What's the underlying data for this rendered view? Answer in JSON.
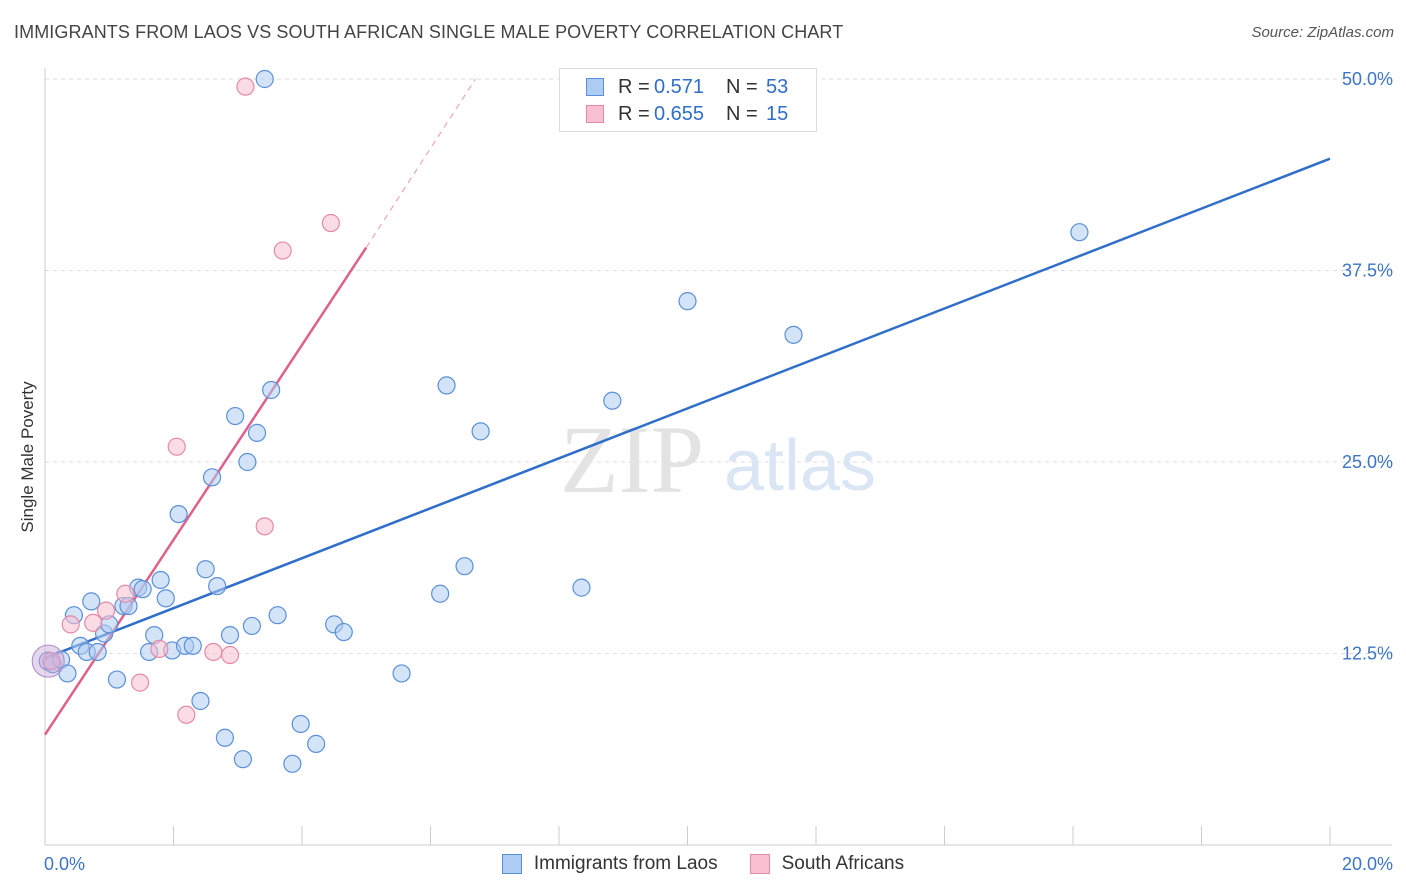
{
  "header": {
    "title": "IMMIGRANTS FROM LAOS VS SOUTH AFRICAN SINGLE MALE POVERTY CORRELATION CHART",
    "source": "Source: ZipAtlas.com"
  },
  "watermark": {
    "zip": "ZIP",
    "atlas": "atlas"
  },
  "legend": {
    "rows": [
      {
        "r_label": "R =",
        "r_value": "0.571",
        "n_label": "N =",
        "n_value": "53"
      },
      {
        "r_label": "R =",
        "r_value": "0.655",
        "n_label": "N =",
        "n_value": "15"
      }
    ]
  },
  "colors": {
    "blue_fill": "#aeccf3",
    "blue_stroke": "#5b90d8",
    "blue_line": "#2f6fc9",
    "pink_fill": "#f7bfd0",
    "pink_stroke": "#e48aa8",
    "pink_line": "#e0608c",
    "axis_text": "#3d74c6",
    "grid": "#dddddd"
  },
  "chart_data": {
    "type": "scatter",
    "title": "IMMIGRANTS FROM LAOS VS SOUTH AFRICAN SINGLE MALE POVERTY CORRELATION CHART",
    "xlabel": "",
    "ylabel": "Single Male Poverty",
    "xlim": [
      0,
      20
    ],
    "ylim": [
      0,
      50
    ],
    "x_tick_labels": [
      "0.0%",
      "20.0%"
    ],
    "y_ticks": [
      {
        "value": 12.5,
        "label": "12.5%"
      },
      {
        "value": 25.0,
        "label": "25.0%"
      },
      {
        "value": 37.5,
        "label": "37.5%"
      },
      {
        "value": 50.0,
        "label": "50.0%"
      }
    ],
    "grid": true,
    "legend_position": "top-center",
    "series": [
      {
        "name": "Immigrants from Laos",
        "R": 0.571,
        "N": 53,
        "points": [
          [
            0.05,
            12.0
          ],
          [
            0.12,
            11.8
          ],
          [
            0.25,
            12.1
          ],
          [
            0.35,
            11.2
          ],
          [
            0.45,
            15.0
          ],
          [
            0.55,
            13.0
          ],
          [
            0.65,
            12.6
          ],
          [
            0.72,
            15.9
          ],
          [
            0.82,
            12.6
          ],
          [
            0.92,
            13.8
          ],
          [
            1.0,
            14.4
          ],
          [
            1.12,
            10.8
          ],
          [
            1.22,
            15.6
          ],
          [
            1.3,
            15.6
          ],
          [
            1.45,
            16.8
          ],
          [
            1.52,
            16.7
          ],
          [
            1.62,
            12.6
          ],
          [
            1.7,
            13.7
          ],
          [
            1.8,
            17.3
          ],
          [
            1.88,
            16.1
          ],
          [
            1.98,
            12.7
          ],
          [
            2.08,
            21.6
          ],
          [
            2.18,
            13.0
          ],
          [
            2.3,
            13.0
          ],
          [
            2.42,
            9.4
          ],
          [
            2.5,
            18.0
          ],
          [
            2.6,
            24.0
          ],
          [
            2.68,
            16.9
          ],
          [
            2.8,
            7.0
          ],
          [
            2.88,
            13.7
          ],
          [
            2.96,
            28.0
          ],
          [
            3.08,
            5.6
          ],
          [
            3.15,
            25.0
          ],
          [
            3.22,
            14.3
          ],
          [
            3.3,
            26.9
          ],
          [
            3.42,
            50.0
          ],
          [
            3.52,
            29.7
          ],
          [
            3.62,
            15.0
          ],
          [
            3.85,
            5.3
          ],
          [
            3.98,
            7.9
          ],
          [
            4.22,
            6.6
          ],
          [
            4.5,
            14.4
          ],
          [
            4.65,
            13.9
          ],
          [
            5.55,
            11.2
          ],
          [
            6.15,
            16.4
          ],
          [
            6.25,
            30.0
          ],
          [
            6.53,
            18.2
          ],
          [
            6.78,
            27.0
          ],
          [
            8.35,
            16.8
          ],
          [
            8.83,
            29.0
          ],
          [
            10.0,
            35.5
          ],
          [
            11.65,
            33.3
          ],
          [
            16.1,
            40.0
          ]
        ],
        "trend": {
          "x0": 0.0,
          "y0": 12.2,
          "x1": 20.0,
          "y1": 44.8
        }
      },
      {
        "name": "South Africans",
        "R": 0.655,
        "N": 15,
        "points": [
          [
            0.1,
            12.0
          ],
          [
            0.4,
            14.4
          ],
          [
            0.75,
            14.5
          ],
          [
            0.95,
            15.3
          ],
          [
            1.25,
            16.4
          ],
          [
            1.48,
            10.6
          ],
          [
            1.78,
            12.8
          ],
          [
            2.05,
            26.0
          ],
          [
            2.2,
            8.5
          ],
          [
            2.62,
            12.6
          ],
          [
            2.88,
            12.4
          ],
          [
            3.12,
            49.5
          ],
          [
            3.42,
            20.8
          ],
          [
            3.7,
            38.8
          ],
          [
            4.45,
            40.6
          ]
        ],
        "trend": {
          "x0": 0.0,
          "y0": 7.2,
          "x1": 5.0,
          "y1": 39.0
        },
        "trend_extension": {
          "x0": 5.0,
          "y0": 39.0,
          "x1": 6.7,
          "y1": 50.0
        }
      }
    ]
  },
  "bottom_legend": {
    "items": [
      {
        "label": "Immigrants from Laos"
      },
      {
        "label": "South Africans"
      }
    ]
  }
}
